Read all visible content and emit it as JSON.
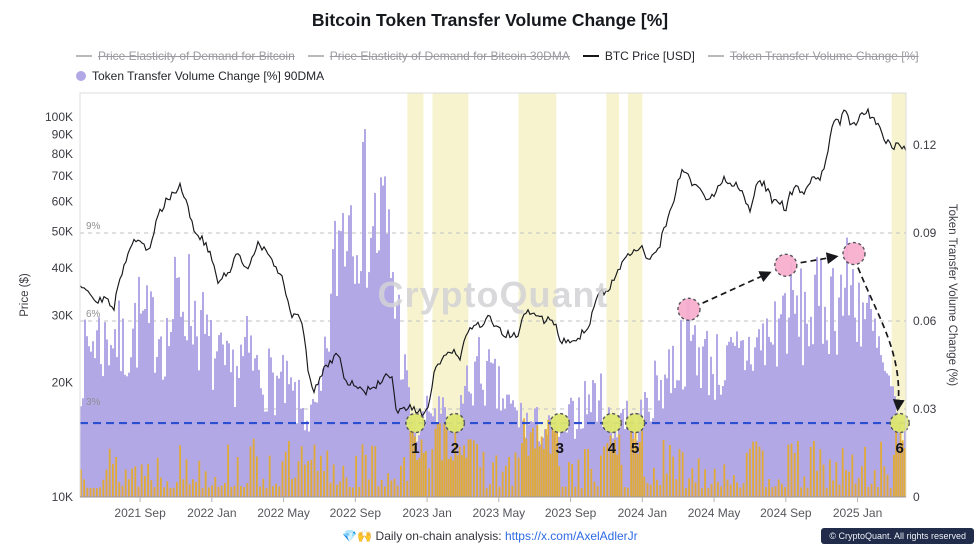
{
  "title": "Bitcoin Token Transfer Volume Change [%]",
  "watermark": "CryptoQuant",
  "legend": {
    "rows": [
      [
        {
          "label": "Price Elasticity of Demand for Bitcoin",
          "marker": "line",
          "color": "#b9b9bd",
          "disabled": true
        },
        {
          "label": "Price Elasticity of Demand for Bitcoin 30DMA",
          "marker": "line",
          "color": "#b9b9bd",
          "disabled": true
        },
        {
          "label": "BTC Price [USD]",
          "marker": "line",
          "color": "#16171a",
          "disabled": false
        },
        {
          "label": "Token Transfer Volume Change [%]",
          "marker": "line",
          "color": "#b9b9bd",
          "disabled": true
        }
      ],
      [
        {
          "label": "Token Transfer Volume Change [%] 90DMA",
          "marker": "circle",
          "color": "#b3a8e6",
          "disabled": false
        }
      ]
    ]
  },
  "footer": {
    "prefix": "💎🙌 Daily on-chain analysis:",
    "link_text": "https://x.com/AxelAdlerJr",
    "link_url": "https://x.com/AxelAdlerJr",
    "copyright": "© CryptoQuant. All rights reserved"
  },
  "axes": {
    "left_title": "Price ($)",
    "right_title": "Token Transfer Volume Change (%)",
    "left_ticks": [
      {
        "label": "100K",
        "value": 100000
      },
      {
        "label": "90K",
        "value": 90000
      },
      {
        "label": "80K",
        "value": 80000
      },
      {
        "label": "70K",
        "value": 70000
      },
      {
        "label": "60K",
        "value": 60000
      },
      {
        "label": "50K",
        "value": 50000
      },
      {
        "label": "40K",
        "value": 40000
      },
      {
        "label": "30K",
        "value": 30000
      },
      {
        "label": "20K",
        "value": 20000
      },
      {
        "label": "10K",
        "value": 10000
      }
    ],
    "right_ticks": [
      {
        "label": "0.12",
        "value": 0.12
      },
      {
        "label": "0.09",
        "value": 0.09
      },
      {
        "label": "0.06",
        "value": 0.06
      },
      {
        "label": "0.03",
        "value": 0.03
      },
      {
        "label": "0",
        "value": 0
      }
    ],
    "x_ticks": [
      {
        "label": "2021 Sep",
        "month": 3
      },
      {
        "label": "2022 Jan",
        "month": 7
      },
      {
        "label": "2022 May",
        "month": 11
      },
      {
        "label": "2022 Sep",
        "month": 15
      },
      {
        "label": "2023 Jan",
        "month": 19
      },
      {
        "label": "2023 May",
        "month": 23
      },
      {
        "label": "2023 Sep",
        "month": 27
      },
      {
        "label": "2024 Jan",
        "month": 31
      },
      {
        "label": "2024 May",
        "month": 35
      },
      {
        "label": "2024 Sep",
        "month": 39
      },
      {
        "label": "2025 Jan",
        "month": 43
      }
    ]
  },
  "chart_data": {
    "type": "area+line",
    "x_unit": "months since 2021-06",
    "x_domain_months": [
      -0.35,
      45.7
    ],
    "price_axis": {
      "scale": "log",
      "range_usd": [
        10000,
        100000
      ]
    },
    "volume_axis": {
      "range": [
        0,
        0.135
      ]
    },
    "reference_lines": [
      {
        "label": "9%",
        "value": 0.09
      },
      {
        "label": "6%",
        "value": 0.06
      },
      {
        "label": "3%",
        "value": 0.03
      }
    ],
    "blue_threshold_value": 0.0252,
    "highlight_bands_months": [
      [
        17.9,
        18.8
      ],
      [
        19.3,
        21.3
      ],
      [
        24.1,
        26.2
      ],
      [
        29.0,
        29.7
      ],
      [
        30.2,
        31.0
      ],
      [
        44.9,
        45.7
      ]
    ],
    "numbered_markers": [
      {
        "n": "1",
        "month": 18.35,
        "value": 0.0252
      },
      {
        "n": "2",
        "month": 20.55,
        "value": 0.0252
      },
      {
        "n": "3",
        "month": 26.4,
        "value": 0.0252
      },
      {
        "n": "4",
        "month": 29.3,
        "value": 0.0252
      },
      {
        "n": "5",
        "month": 30.6,
        "value": 0.0252
      },
      {
        "n": "6",
        "month": 45.35,
        "value": 0.0252
      }
    ],
    "pink_markers": [
      {
        "month": 33.6,
        "value": 0.064
      },
      {
        "month": 39.0,
        "value": 0.079
      },
      {
        "month": 42.8,
        "value": 0.083
      }
    ],
    "arrows": [
      {
        "from": "pink0",
        "to": "pink1",
        "curved": false
      },
      {
        "from": "pink1",
        "to": "pink2",
        "curved": false
      },
      {
        "from": "pink2",
        "to": "dip6",
        "curved": true
      }
    ],
    "colors": {
      "purple": "#b3a8e6",
      "orange": "#e3aa2f",
      "band": "#efe9a6",
      "blue_line": "#2a4fd0",
      "btc_line": "#17181c",
      "pink": "#f8afcf",
      "green": "#dde76f",
      "grid": "#c2c2c2",
      "arrow": "#17171c"
    },
    "btc_price_usd": {
      "name": "BTC Price [USD]",
      "points": [
        [
          -0.35,
          36500
        ],
        [
          0,
          35500
        ],
        [
          0.5,
          33000
        ],
        [
          1,
          33500
        ],
        [
          1.5,
          31000
        ],
        [
          2,
          39000
        ],
        [
          2.5,
          47000
        ],
        [
          3,
          48000
        ],
        [
          3.5,
          43500
        ],
        [
          4,
          55000
        ],
        [
          4.5,
          61000
        ],
        [
          5,
          64000
        ],
        [
          5.2,
          67000
        ],
        [
          5.7,
          57500
        ],
        [
          6,
          50000
        ],
        [
          6.5,
          47500
        ],
        [
          7,
          42500
        ],
        [
          7.3,
          36500
        ],
        [
          8,
          39500
        ],
        [
          8.5,
          44000
        ],
        [
          9,
          39500
        ],
        [
          9.5,
          46000
        ],
        [
          10,
          45000
        ],
        [
          10.5,
          40000
        ],
        [
          11,
          37000
        ],
        [
          11.4,
          30000
        ],
        [
          12,
          29500
        ],
        [
          12.4,
          21000
        ],
        [
          12.7,
          19000
        ],
        [
          13,
          20500
        ],
        [
          13.5,
          22500
        ],
        [
          14,
          24000
        ],
        [
          14.5,
          20000
        ],
        [
          15,
          19800
        ],
        [
          15.5,
          18900
        ],
        [
          16,
          19300
        ],
        [
          16.5,
          20500
        ],
        [
          17,
          20900
        ],
        [
          17.3,
          16500
        ],
        [
          17.6,
          16900
        ],
        [
          18,
          17200
        ],
        [
          18.5,
          16600
        ],
        [
          19,
          16800
        ],
        [
          19.4,
          21000
        ],
        [
          19.8,
          23000
        ],
        [
          20,
          23200
        ],
        [
          20.5,
          24500
        ],
        [
          20.8,
          22300
        ],
        [
          21.3,
          28000
        ],
        [
          21.7,
          28500
        ],
        [
          22,
          28300
        ],
        [
          22.5,
          29600
        ],
        [
          23,
          27300
        ],
        [
          23.5,
          26800
        ],
        [
          24,
          26500
        ],
        [
          24.5,
          30500
        ],
        [
          25,
          30300
        ],
        [
          25.5,
          29200
        ],
        [
          26,
          29400
        ],
        [
          26.4,
          26000
        ],
        [
          27,
          25900
        ],
        [
          27.5,
          26600
        ],
        [
          28,
          27600
        ],
        [
          28.5,
          34200
        ],
        [
          29,
          35200
        ],
        [
          29.5,
          37600
        ],
        [
          30,
          42200
        ],
        [
          30.5,
          43700
        ],
        [
          31,
          45500
        ],
        [
          31.3,
          42600
        ],
        [
          31.8,
          43200
        ],
        [
          32.3,
          52000
        ],
        [
          32.8,
          62000
        ],
        [
          33,
          68000
        ],
        [
          33.3,
          72500
        ],
        [
          33.6,
          69000
        ],
        [
          34,
          65500
        ],
        [
          34.3,
          63800
        ],
        [
          34.7,
          60500
        ],
        [
          35,
          62000
        ],
        [
          35.3,
          67500
        ],
        [
          35.6,
          69200
        ],
        [
          36,
          67200
        ],
        [
          36.4,
          65800
        ],
        [
          36.7,
          61000
        ],
        [
          37,
          57500
        ],
        [
          37.3,
          64500
        ],
        [
          37.6,
          67800
        ],
        [
          38,
          64000
        ],
        [
          38.3,
          59200
        ],
        [
          38.7,
          59000
        ],
        [
          39,
          57800
        ],
        [
          39.3,
          63200
        ],
        [
          39.6,
          65500
        ],
        [
          40,
          62200
        ],
        [
          40.3,
          67200
        ],
        [
          40.7,
          69200
        ],
        [
          41,
          69800
        ],
        [
          41.2,
          76000
        ],
        [
          41.5,
          90000
        ],
        [
          41.8,
          98000
        ],
        [
          42,
          96000
        ],
        [
          42.3,
          105500
        ],
        [
          42.6,
          95500
        ],
        [
          43,
          94200
        ],
        [
          43.2,
          102000
        ],
        [
          43.5,
          104500
        ],
        [
          43.8,
          98000
        ],
        [
          44,
          97000
        ],
        [
          44.2,
          95500
        ],
        [
          44.5,
          88000
        ],
        [
          44.8,
          84000
        ],
        [
          45,
          83000
        ],
        [
          45.3,
          87000
        ],
        [
          45.5,
          84000
        ],
        [
          45.7,
          83000
        ]
      ]
    },
    "volume_90dma": {
      "name": "Token Transfer Volume Change [%] 90DMA",
      "points": [
        [
          -0.35,
          0.05
        ],
        [
          0,
          0.057
        ],
        [
          0.5,
          0.066
        ],
        [
          1,
          0.06
        ],
        [
          1.5,
          0.068
        ],
        [
          2,
          0.058
        ],
        [
          2.5,
          0.064
        ],
        [
          3,
          0.072
        ],
        [
          3.5,
          0.065
        ],
        [
          4,
          0.07
        ],
        [
          4.5,
          0.062
        ],
        [
          5,
          0.078
        ],
        [
          5.5,
          0.082
        ],
        [
          6,
          0.074
        ],
        [
          6.5,
          0.066
        ],
        [
          7,
          0.056
        ],
        [
          7.5,
          0.052
        ],
        [
          8,
          0.048
        ],
        [
          8.5,
          0.053
        ],
        [
          9,
          0.057
        ],
        [
          9.5,
          0.05
        ],
        [
          10,
          0.048
        ],
        [
          10.5,
          0.046
        ],
        [
          11,
          0.044
        ],
        [
          11.5,
          0.04
        ],
        [
          12,
          0.035
        ],
        [
          12.5,
          0.031
        ],
        [
          13,
          0.036
        ],
        [
          13.3,
          0.05
        ],
        [
          13.6,
          0.075
        ],
        [
          14,
          0.1
        ],
        [
          14.3,
          0.112
        ],
        [
          14.7,
          0.118
        ],
        [
          15,
          0.121
        ],
        [
          15.4,
          0.117
        ],
        [
          15.8,
          0.111
        ],
        [
          16.2,
          0.106
        ],
        [
          16.6,
          0.112
        ],
        [
          17,
          0.092
        ],
        [
          17.4,
          0.072
        ],
        [
          17.8,
          0.046
        ],
        [
          18.3,
          0.025
        ],
        [
          18.8,
          0.029
        ],
        [
          19.3,
          0.036
        ],
        [
          19.9,
          0.031
        ],
        [
          20.5,
          0.025
        ],
        [
          21,
          0.04
        ],
        [
          21.5,
          0.048
        ],
        [
          22,
          0.051
        ],
        [
          22.5,
          0.047
        ],
        [
          23,
          0.041
        ],
        [
          23.5,
          0.036
        ],
        [
          24,
          0.033
        ],
        [
          24.5,
          0.03
        ],
        [
          25,
          0.029
        ],
        [
          25.5,
          0.027
        ],
        [
          26,
          0.026
        ],
        [
          26.4,
          0.024
        ],
        [
          27,
          0.031
        ],
        [
          27.5,
          0.035
        ],
        [
          28,
          0.039
        ],
        [
          28.5,
          0.041
        ],
        [
          29,
          0.035
        ],
        [
          29.3,
          0.026
        ],
        [
          29.8,
          0.035
        ],
        [
          30.2,
          0.033
        ],
        [
          30.6,
          0.026
        ],
        [
          31,
          0.033
        ],
        [
          31.5,
          0.04
        ],
        [
          32,
          0.046
        ],
        [
          32.5,
          0.051
        ],
        [
          33,
          0.056
        ],
        [
          33.6,
          0.064
        ],
        [
          34,
          0.061
        ],
        [
          34.5,
          0.056
        ],
        [
          35,
          0.053
        ],
        [
          35.5,
          0.051
        ],
        [
          36,
          0.053
        ],
        [
          36.5,
          0.056
        ],
        [
          37,
          0.059
        ],
        [
          37.5,
          0.061
        ],
        [
          38,
          0.063
        ],
        [
          38.5,
          0.067
        ],
        [
          39,
          0.077
        ],
        [
          39.5,
          0.073
        ],
        [
          40,
          0.071
        ],
        [
          40.5,
          0.073
        ],
        [
          41,
          0.076
        ],
        [
          41.5,
          0.079
        ],
        [
          42,
          0.081
        ],
        [
          42.5,
          0.083
        ],
        [
          43,
          0.081
        ],
        [
          43.3,
          0.076
        ],
        [
          43.6,
          0.069
        ],
        [
          44,
          0.061
        ],
        [
          44.4,
          0.051
        ],
        [
          44.8,
          0.041
        ],
        [
          45.1,
          0.033
        ],
        [
          45.4,
          0.026
        ],
        [
          45.7,
          0.025
        ]
      ]
    }
  }
}
